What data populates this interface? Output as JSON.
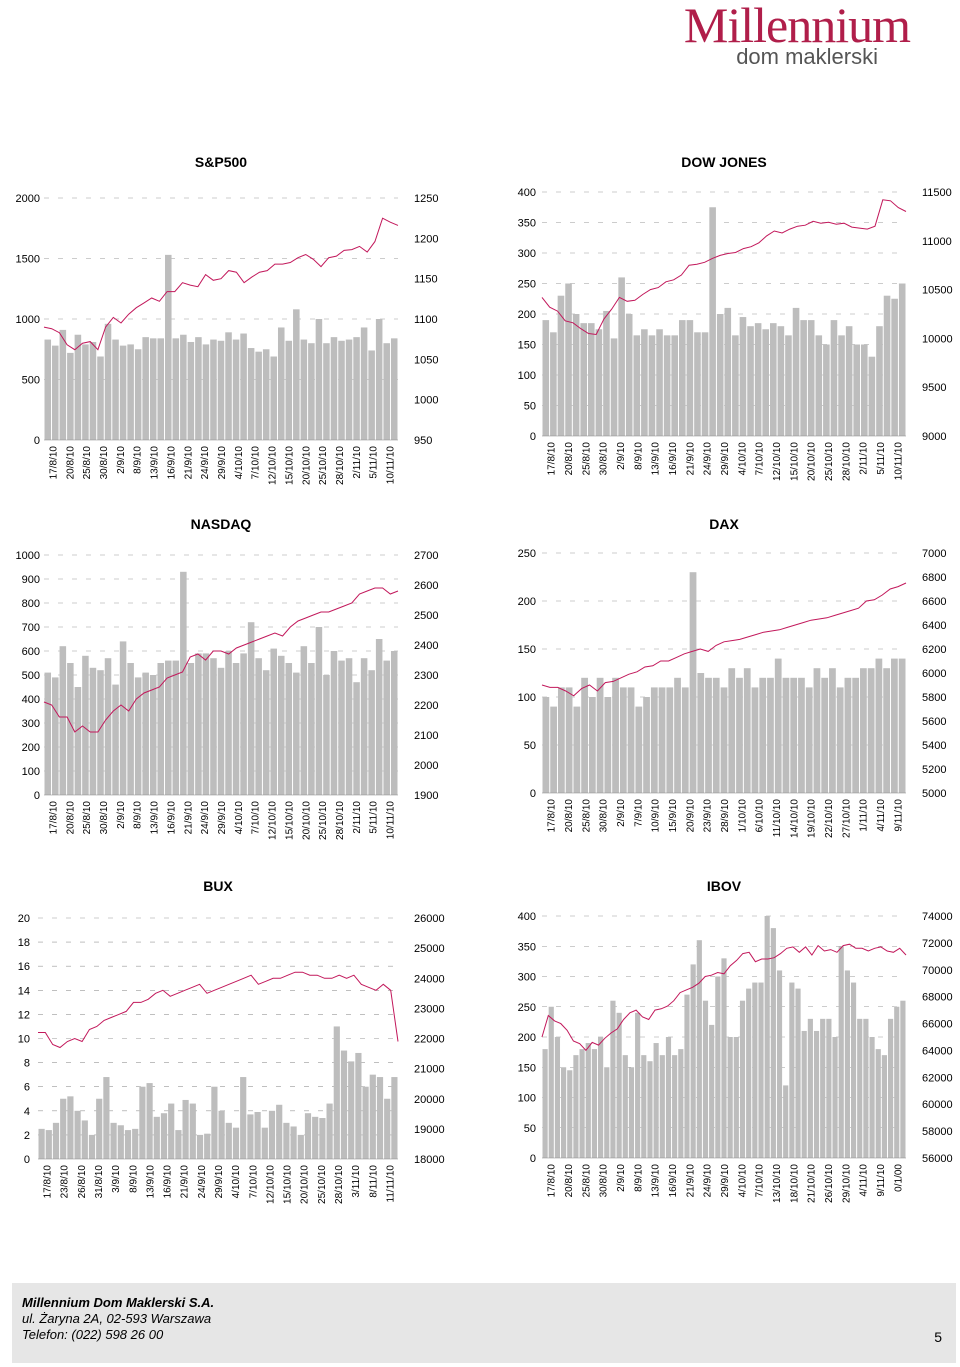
{
  "header": {
    "brand": "Millennium",
    "brand_sub": "dom maklerski"
  },
  "footer": {
    "company": "Millennium Dom Maklerski S.A.",
    "address": "ul. Żaryna 2A, 02-593 Warszawa",
    "phone": "Telefon: (022) 598 26 00",
    "page_number": "5"
  },
  "colors": {
    "bar": "#bdbdbd",
    "line": "#c2185b",
    "grid": "#999999"
  },
  "chart_data": [
    {
      "type": "bar+line",
      "title": "S&P500",
      "left_ticks": [
        "0",
        "500",
        "1000",
        "1500",
        "2000"
      ],
      "ylim_left": [
        0,
        2000
      ],
      "right_ticks": [
        "950",
        "1000",
        "1050",
        "1100",
        "1150",
        "1200",
        "1250"
      ],
      "ylim_right": [
        950,
        1250
      ],
      "xticks": [
        "17/8/10",
        "20/8/10",
        "25/8/10",
        "30/8/10",
        "2/9/10",
        "8/9/10",
        "13/9/10",
        "16/9/10",
        "21/9/10",
        "24/9/10",
        "29/9/10",
        "4/10/10",
        "7/10/10",
        "12/10/10",
        "15/10/10",
        "20/10/10",
        "25/10/10",
        "28/10/10",
        "2/11/10",
        "5/11/10",
        "10/11/10"
      ],
      "bars": [
        830,
        780,
        910,
        720,
        870,
        790,
        810,
        690,
        960,
        830,
        780,
        790,
        750,
        850,
        840,
        840,
        1530,
        840,
        870,
        810,
        850,
        790,
        830,
        820,
        890,
        830,
        880,
        760,
        730,
        750,
        690,
        930,
        820,
        1080,
        830,
        800,
        1000,
        800,
        850,
        820,
        830,
        850,
        930,
        740,
        1000,
        800,
        840
      ],
      "line": [
        1090,
        1088,
        1083,
        1068,
        1062,
        1070,
        1072,
        1062,
        1090,
        1102,
        1095,
        1106,
        1114,
        1120,
        1126,
        1122,
        1134,
        1134,
        1145,
        1142,
        1140,
        1155,
        1148,
        1150,
        1160,
        1158,
        1145,
        1152,
        1158,
        1160,
        1168,
        1168,
        1170,
        1176,
        1180,
        1174,
        1165,
        1176,
        1178,
        1185,
        1186,
        1190,
        1183,
        1196,
        1225,
        1220,
        1216
      ]
    },
    {
      "type": "bar+line",
      "title": "DOW JONES",
      "left_ticks": [
        "0",
        "50",
        "100",
        "150",
        "200",
        "250",
        "300",
        "350",
        "400"
      ],
      "ylim_left": [
        0,
        400
      ],
      "right_ticks": [
        "9000",
        "9500",
        "10000",
        "10500",
        "11000",
        "11500"
      ],
      "ylim_right": [
        9000,
        11500
      ],
      "xticks": [
        "17/8/10",
        "20/8/10",
        "25/8/10",
        "30/8/10",
        "2/9/10",
        "8/9/10",
        "13/9/10",
        "16/9/10",
        "21/9/10",
        "24/9/10",
        "29/9/10",
        "4/10/10",
        "7/10/10",
        "12/10/10",
        "15/10/10",
        "20/10/10",
        "25/10/10",
        "28/10/10",
        "2/11/10",
        "5/11/10",
        "10/11/10"
      ],
      "bars": [
        190,
        170,
        230,
        250,
        200,
        185,
        185,
        175,
        205,
        160,
        260,
        200,
        165,
        175,
        165,
        175,
        165,
        165,
        190,
        190,
        170,
        170,
        375,
        200,
        210,
        165,
        195,
        180,
        185,
        175,
        185,
        180,
        165,
        210,
        190,
        190,
        165,
        150,
        190,
        165,
        180,
        150,
        150,
        130,
        180,
        230,
        225,
        250
      ],
      "line": [
        10420,
        10320,
        10280,
        10180,
        10160,
        10100,
        10050,
        10040,
        10200,
        10300,
        10420,
        10380,
        10390,
        10450,
        10500,
        10520,
        10580,
        10600,
        10650,
        10750,
        10760,
        10780,
        10820,
        10850,
        10870,
        10880,
        10920,
        10940,
        10980,
        11050,
        11100,
        11080,
        11120,
        11150,
        11160,
        11200,
        11180,
        11190,
        11170,
        11180,
        11140,
        11130,
        11120,
        11150,
        11420,
        11410,
        11340,
        11300
      ]
    },
    {
      "type": "bar+line",
      "title": "NASDAQ",
      "left_ticks": [
        "0",
        "100",
        "200",
        "300",
        "400",
        "500",
        "600",
        "700",
        "800",
        "900",
        "1000"
      ],
      "ylim_left": [
        0,
        1000
      ],
      "right_ticks": [
        "1900",
        "2000",
        "2100",
        "2200",
        "2300",
        "2400",
        "2500",
        "2600",
        "2700"
      ],
      "ylim_right": [
        1900,
        2700
      ],
      "xticks": [
        "17/8/10",
        "20/8/10",
        "25/8/10",
        "30/8/10",
        "2/9/10",
        "8/9/10",
        "13/9/10",
        "16/9/10",
        "21/9/10",
        "24/9/10",
        "29/9/10",
        "4/10/10",
        "7/10/10",
        "12/10/10",
        "15/10/10",
        "20/10/10",
        "25/10/10",
        "28/10/10",
        "2/11/10",
        "5/11/10",
        "10/11/10"
      ],
      "bars": [
        510,
        490,
        620,
        550,
        450,
        580,
        530,
        520,
        570,
        460,
        640,
        550,
        490,
        510,
        500,
        550,
        560,
        560,
        930,
        550,
        590,
        590,
        570,
        530,
        600,
        550,
        590,
        720,
        570,
        520,
        610,
        580,
        550,
        510,
        620,
        550,
        700,
        500,
        600,
        560,
        570,
        470,
        570,
        520,
        650,
        560,
        600
      ],
      "line": [
        2210,
        2200,
        2160,
        2160,
        2110,
        2130,
        2110,
        2110,
        2150,
        2180,
        2200,
        2180,
        2220,
        2240,
        2250,
        2260,
        2290,
        2300,
        2310,
        2360,
        2370,
        2350,
        2380,
        2380,
        2370,
        2390,
        2400,
        2410,
        2420,
        2430,
        2440,
        2430,
        2460,
        2480,
        2490,
        2500,
        2510,
        2510,
        2520,
        2530,
        2540,
        2570,
        2580,
        2590,
        2590,
        2570,
        2580
      ]
    },
    {
      "type": "bar+line",
      "title": "DAX",
      "left_ticks": [
        "0",
        "50",
        "100",
        "150",
        "200",
        "250"
      ],
      "ylim_left": [
        0,
        250
      ],
      "right_ticks": [
        "5000",
        "5200",
        "5400",
        "5600",
        "5800",
        "6000",
        "6200",
        "6400",
        "6600",
        "6800",
        "7000"
      ],
      "ylim_right": [
        5000,
        7000
      ],
      "xticks": [
        "17/8/10",
        "20/8/10",
        "25/8/10",
        "30/8/10",
        "2/9/10",
        "7/9/10",
        "10/9/10",
        "15/9/10",
        "20/9/10",
        "23/9/10",
        "28/9/10",
        "1/10/10",
        "6/10/10",
        "11/10/10",
        "14/10/10",
        "19/10/10",
        "22/10/10",
        "27/10/10",
        "1/11/10",
        "4/11/10",
        "9/11/10"
      ],
      "bars": [
        100,
        90,
        110,
        110,
        90,
        120,
        100,
        120,
        100,
        120,
        110,
        110,
        90,
        100,
        110,
        110,
        110,
        120,
        110,
        230,
        125,
        120,
        120,
        110,
        130,
        120,
        130,
        110,
        120,
        120,
        140,
        120,
        120,
        120,
        110,
        130,
        120,
        130,
        110,
        120,
        120,
        130,
        130,
        140,
        130,
        140,
        140
      ],
      "line": [
        5900,
        5880,
        5880,
        5850,
        5810,
        5870,
        5900,
        5850,
        5920,
        5930,
        5960,
        5990,
        6010,
        6050,
        6060,
        6100,
        6100,
        6130,
        6160,
        6180,
        6200,
        6180,
        6230,
        6260,
        6270,
        6280,
        6300,
        6320,
        6340,
        6350,
        6360,
        6380,
        6400,
        6420,
        6440,
        6450,
        6460,
        6480,
        6500,
        6520,
        6540,
        6600,
        6610,
        6650,
        6700,
        6720,
        6750
      ]
    },
    {
      "type": "bar+line",
      "title": "BUX",
      "left_ticks": [
        "0",
        "2",
        "4",
        "6",
        "8",
        "10",
        "12",
        "14",
        "16",
        "18",
        "20"
      ],
      "ylim_left": [
        0,
        20
      ],
      "right_ticks": [
        "18000",
        "19000",
        "20000",
        "21000",
        "22000",
        "23000",
        "24000",
        "25000",
        "26000"
      ],
      "ylim_right": [
        18000,
        26000
      ],
      "xticks": [
        "17/8/10",
        "23/8/10",
        "26/8/10",
        "31/8/10",
        "3/9/10",
        "8/9/10",
        "13/9/10",
        "16/9/10",
        "21/9/10",
        "24/9/10",
        "29/9/10",
        "4/10/10",
        "7/10/10",
        "12/10/10",
        "15/10/10",
        "20/10/10",
        "25/10/10",
        "28/10/10",
        "3/11/10",
        "8/11/10",
        "11/11/10"
      ],
      "bars": [
        2.5,
        2.4,
        3,
        5,
        5.2,
        4,
        3.2,
        2,
        5,
        6.8,
        3,
        2.8,
        2.4,
        2.5,
        6,
        6.3,
        3.5,
        3.8,
        4.6,
        2.4,
        4.9,
        4.6,
        2,
        2.1,
        6,
        4,
        3,
        2.6,
        6.8,
        3.7,
        3.9,
        2.6,
        4,
        4.5,
        3,
        2.7,
        2,
        3.8,
        3.5,
        3.4,
        4.6,
        11,
        9,
        8.1,
        8.8,
        6,
        7,
        6.8,
        5,
        6.8
      ],
      "line": [
        22200,
        22200,
        21800,
        21700,
        21900,
        22000,
        21900,
        22300,
        22400,
        22600,
        22700,
        22800,
        22900,
        23200,
        23200,
        23300,
        23500,
        23600,
        23400,
        23500,
        23600,
        23700,
        23800,
        23500,
        23600,
        23700,
        23800,
        23900,
        24000,
        24100,
        23800,
        23900,
        24000,
        24000,
        24100,
        24200,
        24200,
        24100,
        24100,
        24000,
        24000,
        24100,
        24000,
        24100,
        23800,
        23700,
        23600,
        23800,
        23600,
        21900
      ]
    },
    {
      "type": "bar+line",
      "title": "IBOV",
      "left_ticks": [
        "0",
        "50",
        "100",
        "150",
        "200",
        "250",
        "300",
        "350",
        "400"
      ],
      "ylim_left": [
        0,
        400
      ],
      "right_ticks": [
        "56000",
        "58000",
        "60000",
        "62000",
        "64000",
        "66000",
        "68000",
        "70000",
        "72000",
        "74000"
      ],
      "ylim_right": [
        56000,
        74000
      ],
      "xticks": [
        "17/8/10",
        "20/8/10",
        "25/8/10",
        "30/8/10",
        "2/9/10",
        "8/9/10",
        "13/9/10",
        "16/9/10",
        "21/9/10",
        "24/9/10",
        "29/9/10",
        "4/10/10",
        "7/10/10",
        "13/10/10",
        "18/10/10",
        "21/10/10",
        "26/10/10",
        "29/10/10",
        "4/11/10",
        "9/11/10",
        "0/1/00"
      ],
      "bars": [
        180,
        250,
        200,
        150,
        145,
        170,
        180,
        190,
        180,
        200,
        150,
        260,
        240,
        170,
        150,
        240,
        170,
        160,
        190,
        170,
        200,
        170,
        180,
        270,
        320,
        360,
        260,
        220,
        300,
        330,
        200,
        200,
        260,
        280,
        290,
        290,
        400,
        380,
        310,
        120,
        290,
        280,
        210,
        230,
        210,
        230,
        230,
        200,
        350,
        310,
        290,
        230,
        230,
        200,
        180,
        170,
        230,
        250,
        260
      ],
      "line": [
        65000,
        66600,
        66200,
        66000,
        65500,
        64700,
        64500,
        64000,
        64600,
        64400,
        64900,
        65300,
        65600,
        66300,
        66800,
        67000,
        66500,
        66300,
        67000,
        67100,
        67300,
        67700,
        68300,
        68500,
        68700,
        69000,
        69500,
        69600,
        69800,
        69700,
        70300,
        70700,
        71200,
        71300,
        70600,
        70800,
        70800,
        70900,
        71200,
        71600,
        71700,
        71300,
        71700,
        71100,
        71800,
        71400,
        71500,
        71300,
        71800,
        71900,
        71600,
        71600,
        71400,
        71600,
        71700,
        71400,
        71300,
        71600,
        71100
      ]
    }
  ]
}
